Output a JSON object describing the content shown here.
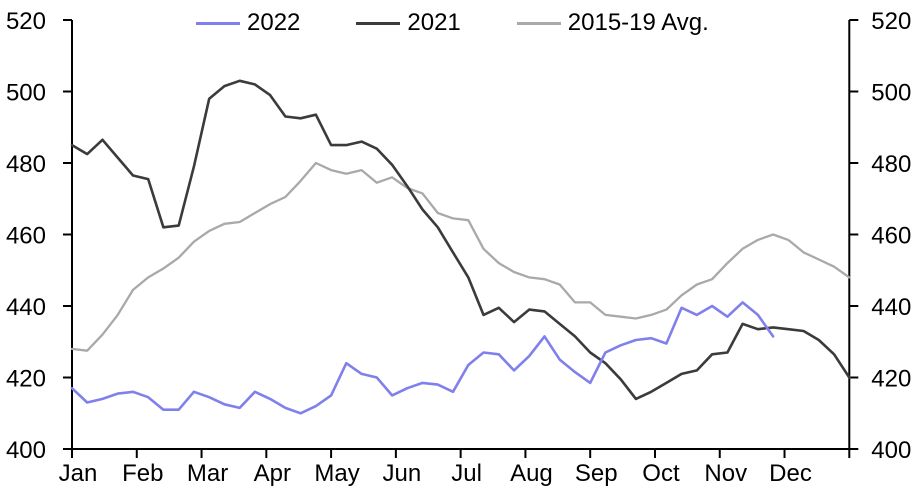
{
  "legend": {
    "position": "top",
    "items": [
      {
        "label": "2022",
        "color": "#8080ec"
      },
      {
        "label": "2021",
        "color": "#3b3b3d"
      },
      {
        "label": "2015-19 Avg.",
        "color": "#a9a9a9"
      }
    ]
  },
  "chart_data": {
    "type": "line",
    "title": "",
    "xlabel": "",
    "ylabel": "",
    "x_unit": "weekly",
    "categories": [
      "Jan",
      "Feb",
      "Mar",
      "Apr",
      "May",
      "Jun",
      "Jul",
      "Aug",
      "Sep",
      "Oct",
      "Nov",
      "Dec"
    ],
    "ylim": [
      400,
      520
    ],
    "y_ticks": [
      400,
      420,
      440,
      460,
      480,
      500,
      520
    ],
    "grid": false,
    "dual_y_axis": true,
    "weeks_per_year": 52,
    "series": [
      {
        "name": "2015-19 Avg.",
        "color": "#a9a9a9",
        "width": 2.3,
        "values": [
          428,
          427.5,
          432,
          437.5,
          444.5,
          448,
          450.5,
          453.5,
          458,
          461,
          463,
          463.5,
          466,
          468.5,
          470.5,
          475,
          480,
          478,
          477,
          478,
          474.5,
          476,
          473,
          471.5,
          466,
          464.5,
          464,
          456,
          452,
          449.5,
          448,
          447.5,
          446,
          441,
          441,
          437.5,
          437,
          436.5,
          437.5,
          439,
          443,
          446,
          447.5,
          452,
          456,
          458.5,
          460,
          458.5,
          455,
          453,
          451,
          448
        ]
      },
      {
        "name": "2021",
        "color": "#3b3b3d",
        "width": 2.6,
        "values": [
          485,
          482.5,
          486.5,
          481.5,
          476.5,
          475.5,
          462,
          462.5,
          479,
          498,
          501.5,
          503,
          502,
          499,
          493,
          492.5,
          493.5,
          485,
          485,
          486,
          484,
          479.5,
          473.5,
          467,
          462,
          455,
          448,
          437.5,
          439.5,
          435.5,
          439,
          438.5,
          435,
          431.5,
          427,
          424,
          419.5,
          414,
          416,
          418.5,
          421,
          422,
          426.5,
          427,
          435,
          433.5,
          434,
          433.5,
          433,
          430.5,
          426.5,
          420
        ]
      },
      {
        "name": "2022",
        "color": "#8080ec",
        "width": 2.6,
        "values": [
          417,
          413,
          414,
          415.5,
          416,
          414.5,
          411,
          411,
          416,
          414.5,
          412.5,
          411.5,
          416,
          414,
          411.5,
          410,
          412,
          415,
          424,
          421,
          420,
          415,
          417,
          418.5,
          418,
          416,
          423.5,
          427,
          426.5,
          422,
          426,
          431.5,
          425,
          421.5,
          418.5,
          427,
          429,
          430.5,
          431,
          429.5,
          439.5,
          437.5,
          440,
          437,
          441,
          437.5,
          431.5
        ]
      }
    ],
    "axis_color": "#000000"
  }
}
